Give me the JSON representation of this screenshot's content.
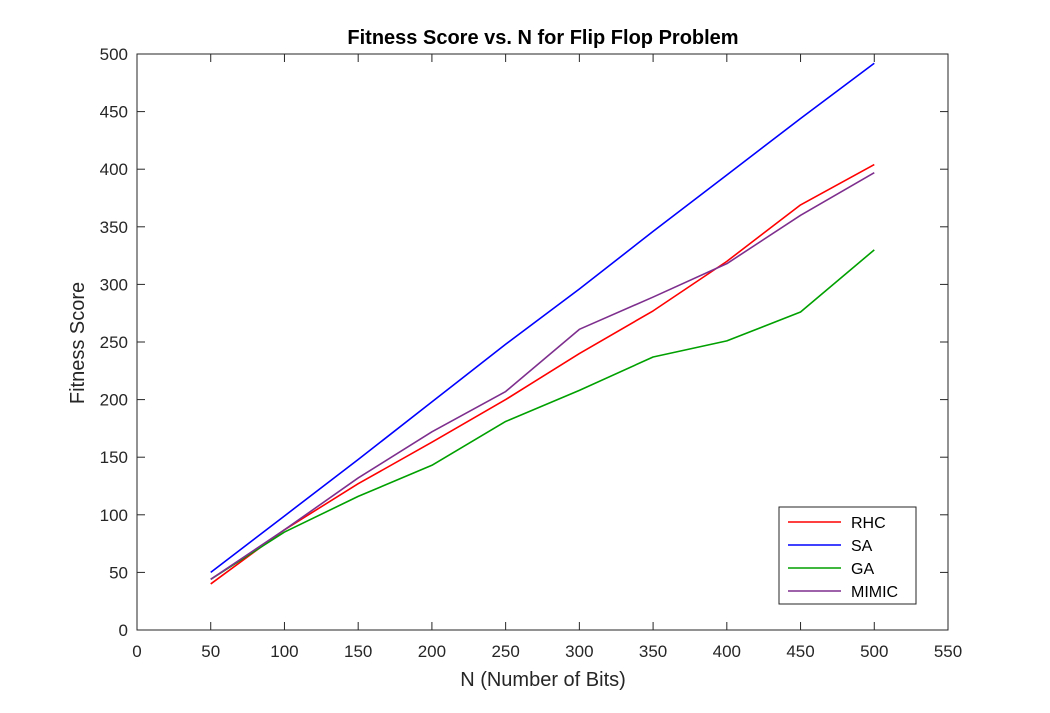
{
  "chart_data": {
    "type": "line",
    "title": "Fitness Score vs. N for Flip Flop Problem",
    "xlabel": "N (Number of Bits)",
    "ylabel": "Fitness Score",
    "xlim": [
      0,
      550
    ],
    "ylim": [
      0,
      500
    ],
    "xticks": [
      0,
      50,
      100,
      150,
      200,
      250,
      300,
      350,
      400,
      450,
      500,
      550
    ],
    "yticks": [
      0,
      50,
      100,
      150,
      200,
      250,
      300,
      350,
      400,
      450,
      500
    ],
    "grid": false,
    "legend_position": "bottom-right",
    "x": [
      50,
      100,
      150,
      200,
      250,
      300,
      350,
      400,
      450,
      500
    ],
    "series": [
      {
        "name": "RHC",
        "color": "#ff0000",
        "values": [
          40,
          87,
          127,
          163,
          200,
          240,
          277,
          320,
          369,
          404
        ]
      },
      {
        "name": "SA",
        "color": "#0000ff",
        "values": [
          50,
          99,
          148,
          198,
          248,
          296,
          346,
          395,
          444,
          492
        ]
      },
      {
        "name": "GA",
        "color": "#00a000",
        "values": [
          44,
          85,
          116,
          143,
          181,
          208,
          237,
          251,
          276,
          330
        ]
      },
      {
        "name": "MIMIC",
        "color": "#7e2f8e",
        "values": [
          44,
          87,
          132,
          172,
          207,
          261,
          289,
          318,
          360,
          397
        ]
      }
    ]
  }
}
